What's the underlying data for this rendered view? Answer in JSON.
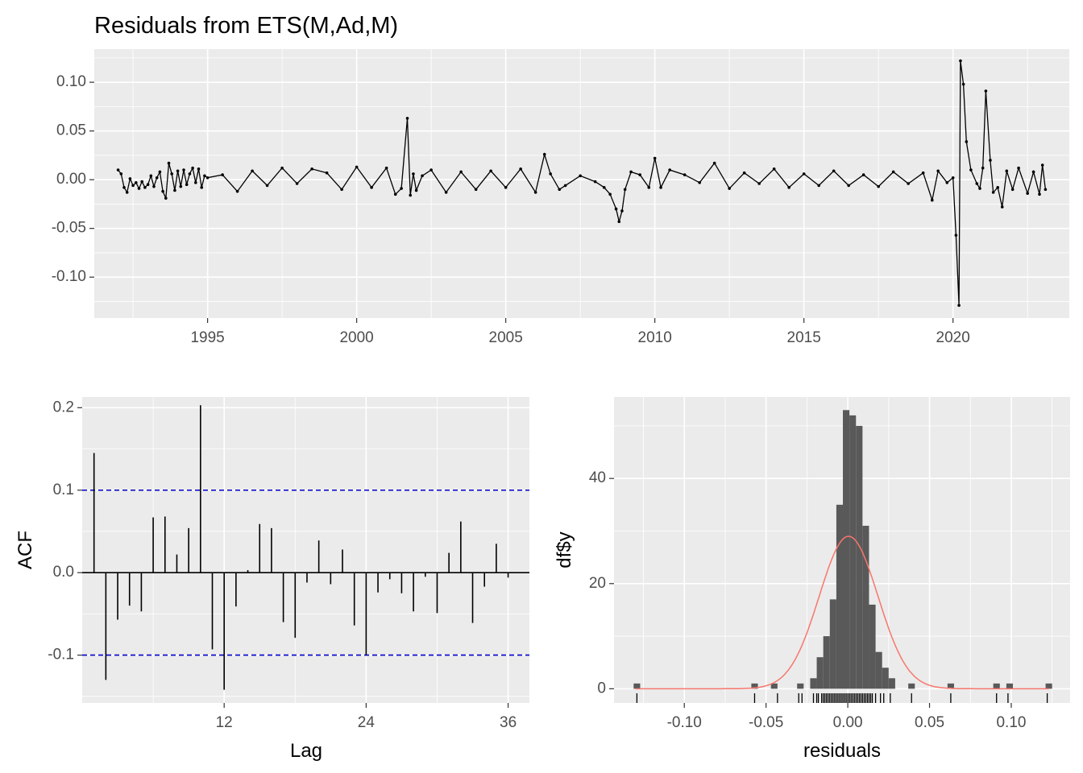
{
  "chart_data": [
    {
      "type": "line",
      "title": "Residuals from ETS(M,Ad,M)",
      "xlabel": "",
      "ylabel": "",
      "xlim": [
        1991.2,
        2023.9
      ],
      "ylim": [
        -0.142,
        0.134
      ],
      "x_ticks": [
        1995,
        2000,
        2005,
        2010,
        2015,
        2020
      ],
      "x_tick_labels": [
        "1995",
        "2000",
        "2005",
        "2010",
        "2015",
        "2020"
      ],
      "y_ticks": [
        -0.1,
        -0.05,
        0.0,
        0.05,
        0.1
      ],
      "y_tick_labels": [
        "-0.10",
        "-0.05",
        "0.00",
        "0.05",
        "0.10"
      ],
      "grid": true,
      "series": [
        {
          "points_x": [
            1992.0,
            1992.1,
            1992.2,
            1992.3,
            1992.4,
            1992.5,
            1992.6,
            1992.7,
            1992.8,
            1992.9,
            1993.0,
            1993.1,
            1993.2,
            1993.3,
            1993.4,
            1993.5,
            1993.6,
            1993.7,
            1993.8,
            1993.9,
            1994.0,
            1994.1,
            1994.2,
            1994.3,
            1994.4,
            1994.5,
            1994.6,
            1994.7,
            1994.8,
            1994.9,
            1995.0,
            1995.5,
            1996.0,
            1996.5,
            1997.0,
            1997.5,
            1998.0,
            1998.5,
            1999.0,
            1999.5,
            2000.0,
            2000.5,
            2001.0,
            2001.3,
            2001.5,
            2001.7,
            2001.8,
            2001.9,
            2002.0,
            2002.2,
            2002.5,
            2003.0,
            2003.5,
            2004.0,
            2004.5,
            2005.0,
            2005.5,
            2006.0,
            2006.3,
            2006.5,
            2006.8,
            2007.0,
            2007.5,
            2008.0,
            2008.3,
            2008.5,
            2008.7,
            2008.8,
            2008.9,
            2009.0,
            2009.2,
            2009.5,
            2009.8,
            2010.0,
            2010.2,
            2010.5,
            2011.0,
            2011.5,
            2012.0,
            2012.5,
            2013.0,
            2013.5,
            2014.0,
            2014.5,
            2015.0,
            2015.5,
            2016.0,
            2016.5,
            2017.0,
            2017.5,
            2018.0,
            2018.5,
            2019.0,
            2019.3,
            2019.5,
            2019.8,
            2020.0,
            2020.1,
            2020.2,
            2020.25,
            2020.35,
            2020.45,
            2020.6,
            2020.8,
            2020.9,
            2021.0,
            2021.1,
            2021.25,
            2021.35,
            2021.5,
            2021.65,
            2021.8,
            2022.0,
            2022.2,
            2022.5,
            2022.7,
            2022.9,
            2023.0,
            2023.1
          ],
          "values": [
            0.01,
            0.006,
            -0.008,
            -0.013,
            0.001,
            -0.006,
            -0.003,
            -0.009,
            -0.002,
            -0.008,
            -0.005,
            0.004,
            -0.007,
            0.002,
            0.008,
            -0.012,
            -0.019,
            0.017,
            0.006,
            -0.011,
            0.009,
            -0.007,
            0.01,
            -0.005,
            0.006,
            0.012,
            -0.003,
            0.011,
            -0.008,
            0.004,
            0.002,
            0.005,
            -0.012,
            0.009,
            -0.006,
            0.012,
            -0.004,
            0.011,
            0.007,
            -0.01,
            0.013,
            -0.008,
            0.012,
            -0.015,
            -0.009,
            0.063,
            -0.016,
            0.006,
            -0.011,
            0.004,
            0.01,
            -0.013,
            0.008,
            -0.01,
            0.009,
            -0.008,
            0.011,
            -0.013,
            0.026,
            0.006,
            -0.01,
            -0.006,
            0.004,
            -0.002,
            -0.008,
            -0.015,
            -0.03,
            -0.043,
            -0.032,
            -0.01,
            0.008,
            0.005,
            -0.008,
            0.022,
            -0.008,
            0.01,
            0.005,
            -0.003,
            0.017,
            -0.009,
            0.007,
            -0.004,
            0.011,
            -0.008,
            0.006,
            -0.006,
            0.009,
            -0.006,
            0.005,
            -0.007,
            0.008,
            -0.004,
            0.007,
            -0.021,
            0.009,
            -0.003,
            0.002,
            -0.057,
            -0.129,
            0.122,
            0.098,
            0.039,
            0.01,
            -0.004,
            -0.009,
            0.012,
            0.091,
            0.02,
            -0.013,
            -0.008,
            -0.028,
            0.009,
            -0.01,
            0.012,
            -0.014,
            0.008,
            -0.015,
            0.015,
            -0.01
          ]
        }
      ]
    },
    {
      "type": "bar",
      "xlabel": "Lag",
      "ylabel": "ACF",
      "xlim": [
        0,
        37.8
      ],
      "ylim": [
        -0.158,
        0.213
      ],
      "x_ticks": [
        12,
        24,
        36
      ],
      "x_tick_labels": [
        "12",
        "24",
        "36"
      ],
      "y_ticks": [
        -0.1,
        0.0,
        0.1,
        0.2
      ],
      "y_tick_labels": [
        "-0.1",
        "0.0",
        "0.1",
        "0.2"
      ],
      "confidence_band": [
        -0.1,
        0.1
      ],
      "grid": true,
      "lags": [
        1,
        2,
        3,
        4,
        5,
        6,
        7,
        8,
        9,
        10,
        11,
        12,
        13,
        14,
        15,
        16,
        17,
        18,
        19,
        20,
        21,
        22,
        23,
        24,
        25,
        26,
        27,
        28,
        29,
        30,
        31,
        32,
        33,
        34,
        35,
        36
      ],
      "values": [
        0.145,
        -0.13,
        -0.057,
        -0.04,
        -0.047,
        0.067,
        0.068,
        0.022,
        0.054,
        0.203,
        -0.093,
        -0.142,
        -0.041,
        0.003,
        0.059,
        0.054,
        -0.06,
        -0.079,
        -0.012,
        0.039,
        -0.014,
        0.028,
        -0.064,
        -0.1,
        -0.024,
        -0.008,
        -0.025,
        -0.047,
        -0.005,
        -0.049,
        0.024,
        0.062,
        -0.061,
        -0.017,
        0.035,
        -0.006
      ]
    },
    {
      "type": "bar",
      "xlabel": "residuals",
      "ylabel": "df$y",
      "xlim": [
        -0.143,
        0.136
      ],
      "ylim": [
        -2.7,
        55.5
      ],
      "x_ticks": [
        -0.1,
        -0.05,
        0.0,
        0.05,
        0.1
      ],
      "x_tick_labels": [
        "-0.10",
        "-0.05",
        "0.00",
        "0.05",
        "0.10"
      ],
      "y_ticks": [
        0,
        20,
        40
      ],
      "y_tick_labels": [
        "0",
        "20",
        "40"
      ],
      "bar_color": "#595959",
      "curve_color": "#f8766d",
      "grid": true,
      "histogram": {
        "bins": [
          {
            "x0": -0.131,
            "x1": -0.127,
            "count": 1
          },
          {
            "x0": -0.059,
            "x1": -0.055,
            "count": 1
          },
          {
            "x0": -0.047,
            "x1": -0.043,
            "count": 1
          },
          {
            "x0": -0.031,
            "x1": -0.027,
            "count": 1
          },
          {
            "x0": -0.023,
            "x1": -0.019,
            "count": 2
          },
          {
            "x0": -0.019,
            "x1": -0.015,
            "count": 6
          },
          {
            "x0": -0.015,
            "x1": -0.011,
            "count": 10
          },
          {
            "x0": -0.011,
            "x1": -0.007,
            "count": 17
          },
          {
            "x0": -0.007,
            "x1": -0.003,
            "count": 35
          },
          {
            "x0": -0.003,
            "x1": 0.001,
            "count": 53
          },
          {
            "x0": 0.001,
            "x1": 0.005,
            "count": 52
          },
          {
            "x0": 0.005,
            "x1": 0.009,
            "count": 50
          },
          {
            "x0": 0.009,
            "x1": 0.013,
            "count": 31
          },
          {
            "x0": 0.013,
            "x1": 0.017,
            "count": 16
          },
          {
            "x0": 0.017,
            "x1": 0.021,
            "count": 7
          },
          {
            "x0": 0.021,
            "x1": 0.025,
            "count": 4
          },
          {
            "x0": 0.025,
            "x1": 0.029,
            "count": 2
          },
          {
            "x0": 0.037,
            "x1": 0.041,
            "count": 1
          },
          {
            "x0": 0.061,
            "x1": 0.065,
            "count": 1
          },
          {
            "x0": 0.089,
            "x1": 0.093,
            "count": 1
          },
          {
            "x0": 0.097,
            "x1": 0.101,
            "count": 1
          },
          {
            "x0": 0.121,
            "x1": 0.125,
            "count": 1
          }
        ]
      },
      "density_curve": {
        "mean": 0.0005,
        "sd": 0.018,
        "peak": 29
      },
      "rug": [
        -0.129,
        -0.057,
        -0.043,
        -0.03,
        -0.028,
        -0.021,
        -0.019,
        -0.018,
        -0.016,
        -0.015,
        -0.014,
        -0.013,
        -0.012,
        -0.011,
        -0.01,
        -0.009,
        -0.008,
        -0.007,
        -0.006,
        -0.005,
        -0.004,
        -0.003,
        -0.002,
        -0.001,
        0.0,
        0.001,
        0.002,
        0.003,
        0.004,
        0.005,
        0.006,
        0.007,
        0.008,
        0.009,
        0.01,
        0.011,
        0.012,
        0.013,
        0.014,
        0.015,
        0.017,
        0.02,
        0.022,
        0.026,
        0.039,
        0.063,
        0.091,
        0.098,
        0.122
      ]
    }
  ]
}
